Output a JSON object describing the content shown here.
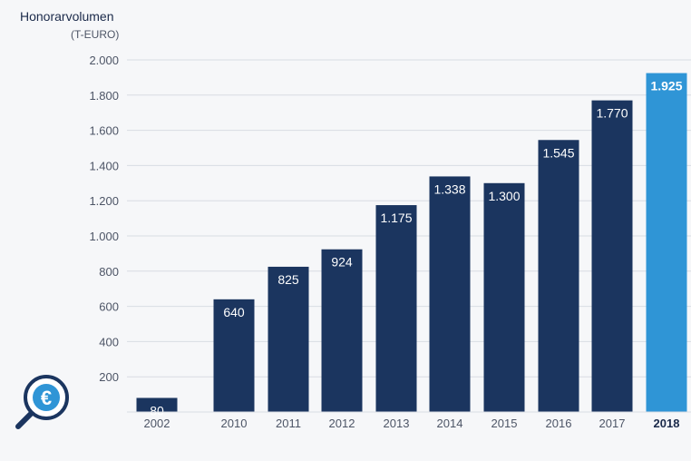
{
  "chart_data": {
    "type": "bar",
    "title": "Honorarvolumen",
    "subtitle": "(T-EURO)",
    "categories": [
      "2002",
      "2010",
      "2011",
      "2012",
      "2013",
      "2014",
      "2015",
      "2016",
      "2017",
      "2018"
    ],
    "values": [
      80,
      640,
      825,
      924,
      1175,
      1338,
      1300,
      1545,
      1770,
      1925
    ],
    "value_labels": [
      "80",
      "640",
      "825",
      "924",
      "1.175",
      "1.338",
      "1.300",
      "1.545",
      "1.770",
      "1.925"
    ],
    "yticks": [
      200,
      400,
      600,
      800,
      1000,
      1200,
      1400,
      1600,
      1800,
      2000
    ],
    "ytick_labels": [
      "200",
      "400",
      "600",
      "800",
      "1.000",
      "1.200",
      "1.400",
      "1.600",
      "1.800",
      "2.000"
    ],
    "ylim": [
      0,
      2000
    ],
    "grid": true,
    "highlight_category": "2018",
    "colors": {
      "bar": "#1b355f",
      "highlight": "#2f95d6",
      "grid": "#d8dce3",
      "axis": "#1b2a4a"
    }
  },
  "logo": {
    "icon": "euro-magnifier-icon",
    "glyph": "€",
    "color": "#1b355f",
    "accent": "#2f95d6"
  }
}
